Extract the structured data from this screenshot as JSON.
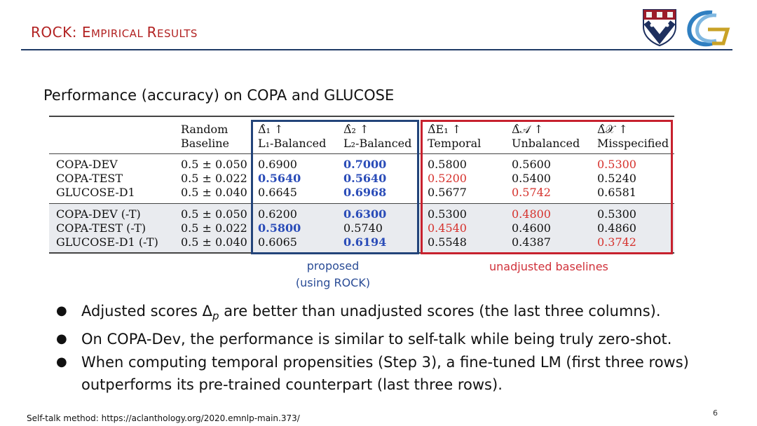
{
  "header": {
    "title_main": "ROCK: E",
    "title_sc": "MPIRICAL ",
    "title_R": "R",
    "title_sc2": "ESULTS"
  },
  "subtitle": "Performance (accuracy) on COPA and GLUCOSE",
  "table": {
    "headers": {
      "random_line1": "Random",
      "random_line2": "Baseline",
      "d1_line1": "Δ̂₁ ↑",
      "d1_line2": "L₁-Balanced",
      "d2_line1": "Δ̂₂ ↑",
      "d2_line2": "L₂-Balanced",
      "de_line1": "Δ̂E₁ ↑",
      "de_line2": "Temporal",
      "da_line1": "Δ̂𝒜 ↑",
      "da_line2": "Unbalanced",
      "dx_line1": "Δ̂𝒳 ↑",
      "dx_line2": "Misspecified"
    },
    "rows": [
      {
        "name": "COPA-DEV",
        "baseline": "0.5 ± 0.050",
        "d1": "0.6900",
        "d2": "0.7000",
        "de": "0.5800",
        "da": "0.5600",
        "dx": "0.5300"
      },
      {
        "name": "COPA-TEST",
        "baseline": "0.5 ± 0.022",
        "d1": "0.5640",
        "d2": "0.5640",
        "de": "0.5200",
        "da": "0.5400",
        "dx": "0.5240"
      },
      {
        "name": "GLUCOSE-D1",
        "baseline": "0.5 ± 0.040",
        "d1": "0.6645",
        "d2": "0.6968",
        "de": "0.5677",
        "da": "0.5742",
        "dx": "0.6581"
      },
      {
        "name": "COPA-DEV (-T)",
        "baseline": "0.5 ± 0.050",
        "d1": "0.6200",
        "d2": "0.6300",
        "de": "0.5300",
        "da": "0.4800",
        "dx": "0.5300"
      },
      {
        "name": "COPA-TEST (-T)",
        "baseline": "0.5 ± 0.022",
        "d1": "0.5800",
        "d2": "0.5740",
        "de": "0.4540",
        "da": "0.4600",
        "dx": "0.4860"
      },
      {
        "name": "GLUCOSE-D1 (-T)",
        "baseline": "0.5 ± 0.040",
        "d1": "0.6065",
        "d2": "0.6194",
        "de": "0.5548",
        "da": "0.4387",
        "dx": "0.3742"
      }
    ],
    "highlight_colors": {
      "best_proposed": "#2a4cb8",
      "worst_unadjusted": "#d6322d",
      "proposed_box": "#23447a",
      "baseline_box": "#c7212e"
    }
  },
  "labels": {
    "proposed_line1": "proposed",
    "proposed_line2": "(using ROCK)",
    "unadjusted": "unadjusted baselines"
  },
  "bullets": {
    "b1_pre": "Adjusted scores ",
    "b1_delta": "Δ",
    "b1_sub": "p",
    "b1_post": " are better than unadjusted scores (the last three columns).",
    "b2": "On COPA-Dev, the performance is similar to self-talk while being truly zero-shot.",
    "b3": "When computing temporal propensities (Step 3), a fine-tuned LM (first three rows) outperforms its pre-trained counterpart (last three rows)."
  },
  "footer": {
    "note": "Self-talk method: https://aclanthology.org/2020.emnlp-main.373/",
    "page_number": "6"
  },
  "icons": {
    "logo1": "penn-shield-logo",
    "logo2": "g-swoosh-logo"
  }
}
